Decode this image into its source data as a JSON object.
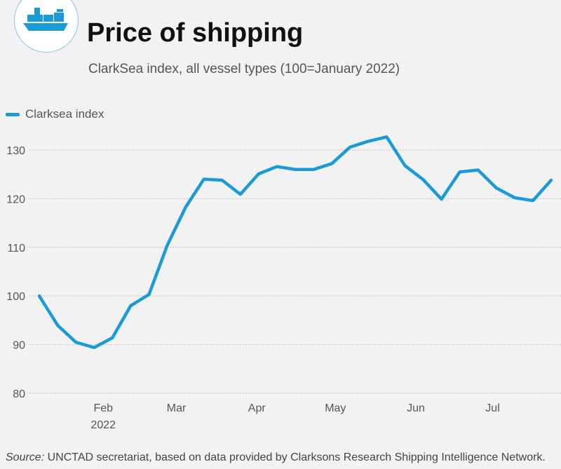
{
  "header": {
    "title": "Price of shipping",
    "subtitle": "ClarkSea index, all vessel types (100=January 2022)"
  },
  "source": {
    "label": "Source:",
    "text": " UNCTAD secretariat, based on data provided by Clarksons Research Shipping Intelligence Network."
  },
  "colors": {
    "line": "#1a9bd7",
    "grid": "#bbbbbb"
  },
  "chart_data": {
    "type": "line",
    "title": "Price of shipping",
    "subtitle": "ClarkSea index, all vessel types (100=January 2022)",
    "ylim": [
      80,
      135
    ],
    "yticks": [
      80,
      90,
      100,
      110,
      120,
      130
    ],
    "x_unit": "week index (week 0 = mid-January 2022)",
    "xlim": [
      0,
      29.5
    ],
    "xticks": [
      {
        "label": "Feb",
        "pos": 3.5,
        "sub": "2022"
      },
      {
        "label": "Mar",
        "pos": 7.5
      },
      {
        "label": "Apr",
        "pos": 11.9
      },
      {
        "label": "May",
        "pos": 16.2
      },
      {
        "label": "Jun",
        "pos": 20.6
      },
      {
        "label": "Jul",
        "pos": 24.8
      }
    ],
    "legend": {
      "position": "top-left",
      "entries": [
        "Clarksea index"
      ]
    },
    "series": [
      {
        "name": "Clarksea index",
        "values": [
          100,
          94,
          90.5,
          89.4,
          91.4,
          98,
          100.3,
          110.4,
          118.2,
          124,
          123.8,
          120.9,
          125.1,
          126.6,
          126,
          126,
          127.2,
          130.6,
          131.8,
          132.7,
          126.8,
          123.9,
          119.9,
          125.5,
          125.9,
          122.2,
          120.2,
          119.6,
          123.8
        ]
      }
    ],
    "grid": true
  }
}
